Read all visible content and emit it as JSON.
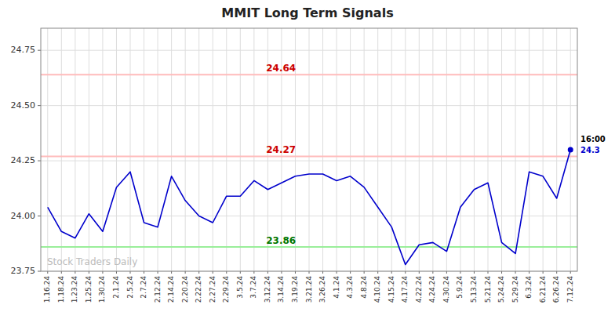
{
  "chart_data": {
    "type": "line",
    "title": "MMIT Long Term Signals",
    "watermark": "Stock Traders Daily",
    "color": "#0000cc",
    "grid": true,
    "ylim": [
      23.75,
      24.85
    ],
    "yticks": [
      23.75,
      {
        "value": 24.0,
        "label": "24.00"
      },
      24.25,
      {
        "value": 24.5,
        "label": "24.50"
      },
      24.75
    ],
    "categories": [
      "1.16.24",
      "1.18.24",
      "1.23.24",
      "1.25.24",
      "1.30.24",
      "2.1.24",
      "2.5.24",
      "2.7.24",
      "2.12.24",
      "2.14.24",
      "2.20.24",
      "2.22.24",
      "2.27.24",
      "2.29.24",
      "3.5.24",
      "3.7.24",
      "3.12.24",
      "3.14.24",
      "3.19.24",
      "3.21.24",
      "3.26.24",
      "4.1.24",
      "4.3.24",
      "4.8.24",
      "4.10.24",
      "4.15.24",
      "4.17.24",
      "4.22.24",
      "4.24.24",
      "4.30.24",
      "5.9.24",
      "5.13.24",
      "5.21.24",
      "5.24.24",
      "5.29.24",
      "6.3.24",
      "6.21.24",
      "6.26.24",
      "7.12.24"
    ],
    "values": [
      24.04,
      23.93,
      23.9,
      24.01,
      23.93,
      24.13,
      24.2,
      23.97,
      23.95,
      24.18,
      24.07,
      24.0,
      23.97,
      24.09,
      24.09,
      24.16,
      24.12,
      24.15,
      24.18,
      24.19,
      24.19,
      24.16,
      24.18,
      24.13,
      24.04,
      23.95,
      23.78,
      23.87,
      23.88,
      23.84,
      24.04,
      24.12,
      24.15,
      23.88,
      23.83,
      24.2,
      24.18,
      24.08,
      24.3
    ],
    "reference_lines": [
      {
        "value": 24.64,
        "label": "24.64",
        "color": "#ffbbbb",
        "label_color": "#cc0000"
      },
      {
        "value": 24.27,
        "label": "24.27",
        "color": "#ffbbbb",
        "label_color": "#cc0000"
      },
      {
        "value": 23.86,
        "label": "23.86",
        "color": "#99ee99",
        "label_color": "#007700"
      }
    ],
    "last_point": {
      "time": "16:00",
      "value": 24.3,
      "color": "#0000cc"
    }
  }
}
